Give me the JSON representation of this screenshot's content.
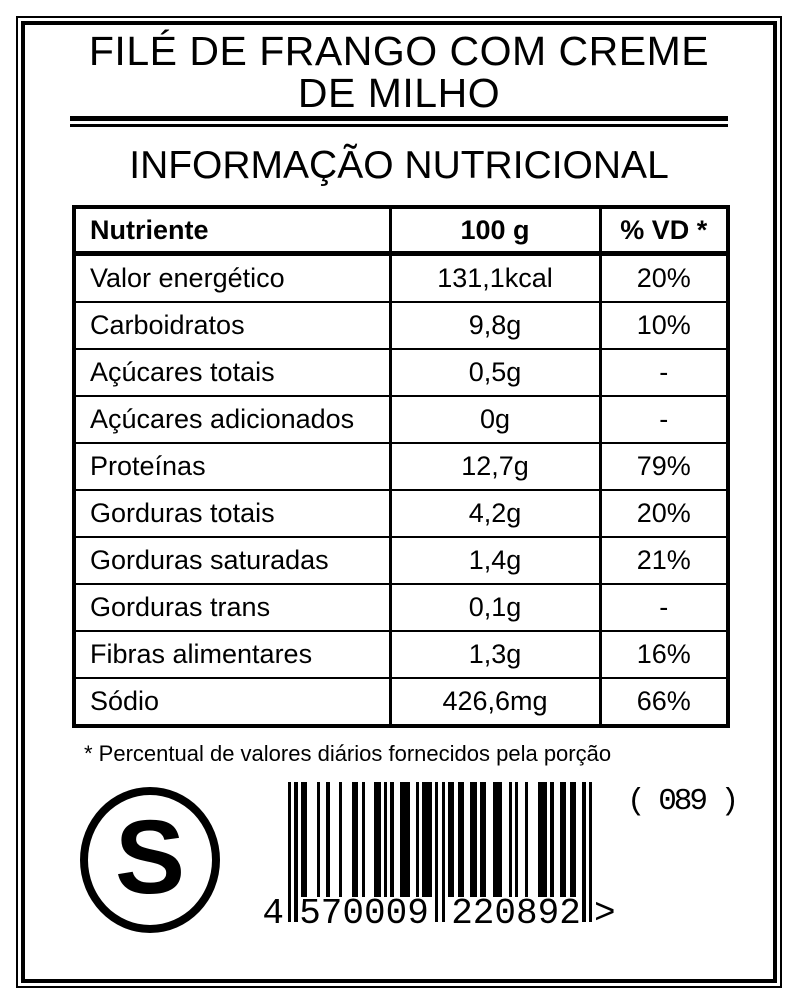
{
  "label": {
    "title_line1": "FILÉ DE FRANGO COM CREME",
    "title_line2": "DE MILHO",
    "section_heading": "INFORMAÇÃO NUTRICIONAL"
  },
  "table": {
    "headers": {
      "nutrient": "Nutriente",
      "amount": "100 g",
      "dv": "% VD *"
    },
    "rows": [
      {
        "nutrient": "Valor energético",
        "amount": "131,1kcal",
        "dv": "20%"
      },
      {
        "nutrient": "Carboidratos",
        "amount": "9,8g",
        "dv": "10%"
      },
      {
        "nutrient": "Açúcares totais",
        "amount": "0,5g",
        "dv": "-"
      },
      {
        "nutrient": "Açúcares adicionados",
        "amount": "0g",
        "dv": "-"
      },
      {
        "nutrient": "Proteínas",
        "amount": "12,7g",
        "dv": "79%"
      },
      {
        "nutrient": "Gorduras totais",
        "amount": "4,2g",
        "dv": "20%"
      },
      {
        "nutrient": "Gorduras saturadas",
        "amount": "1,4g",
        "dv": "21%"
      },
      {
        "nutrient": "Gorduras trans",
        "amount": "0,1g",
        "dv": "-"
      },
      {
        "nutrient": "Fibras alimentares",
        "amount": "1,3g",
        "dv": "16%"
      },
      {
        "nutrient": "Sódio",
        "amount": "426,6mg",
        "dv": "66%"
      }
    ]
  },
  "footnote": "* Percentual de valores diários fornecidos pela porção",
  "stamp": {
    "letter": "S"
  },
  "batch_code": "( 089 )",
  "barcode": {
    "value": "4570009220892",
    "human": {
      "prefix": "4",
      "group1": "570009",
      "group2": "220892",
      "trailer": ">"
    },
    "pattern": "10101100010010001000110100011010100111001011101010110110011011001110010100100011101001101100101",
    "guard_indices": [
      0,
      2,
      46,
      48,
      92,
      94
    ]
  },
  "colors": {
    "ink": "#000000",
    "paper": "#ffffff"
  }
}
